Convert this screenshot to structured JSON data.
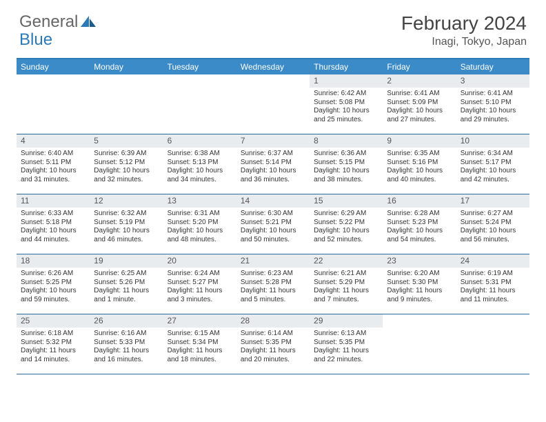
{
  "brand": {
    "part1": "General",
    "part2": "Blue"
  },
  "title": "February 2024",
  "location": "Inagi, Tokyo, Japan",
  "colors": {
    "header_bg": "#3b8bc8",
    "border": "#2a6a9a",
    "daynum_bg": "#e9ecef",
    "text": "#333333",
    "brand_gray": "#666666",
    "brand_blue": "#2a7ab8"
  },
  "weekdays": [
    "Sunday",
    "Monday",
    "Tuesday",
    "Wednesday",
    "Thursday",
    "Friday",
    "Saturday"
  ],
  "first_weekday_index": 4,
  "days": [
    {
      "n": 1,
      "sunrise": "6:42 AM",
      "sunset": "5:08 PM",
      "daylight": "10 hours and 25 minutes."
    },
    {
      "n": 2,
      "sunrise": "6:41 AM",
      "sunset": "5:09 PM",
      "daylight": "10 hours and 27 minutes."
    },
    {
      "n": 3,
      "sunrise": "6:41 AM",
      "sunset": "5:10 PM",
      "daylight": "10 hours and 29 minutes."
    },
    {
      "n": 4,
      "sunrise": "6:40 AM",
      "sunset": "5:11 PM",
      "daylight": "10 hours and 31 minutes."
    },
    {
      "n": 5,
      "sunrise": "6:39 AM",
      "sunset": "5:12 PM",
      "daylight": "10 hours and 32 minutes."
    },
    {
      "n": 6,
      "sunrise": "6:38 AM",
      "sunset": "5:13 PM",
      "daylight": "10 hours and 34 minutes."
    },
    {
      "n": 7,
      "sunrise": "6:37 AM",
      "sunset": "5:14 PM",
      "daylight": "10 hours and 36 minutes."
    },
    {
      "n": 8,
      "sunrise": "6:36 AM",
      "sunset": "5:15 PM",
      "daylight": "10 hours and 38 minutes."
    },
    {
      "n": 9,
      "sunrise": "6:35 AM",
      "sunset": "5:16 PM",
      "daylight": "10 hours and 40 minutes."
    },
    {
      "n": 10,
      "sunrise": "6:34 AM",
      "sunset": "5:17 PM",
      "daylight": "10 hours and 42 minutes."
    },
    {
      "n": 11,
      "sunrise": "6:33 AM",
      "sunset": "5:18 PM",
      "daylight": "10 hours and 44 minutes."
    },
    {
      "n": 12,
      "sunrise": "6:32 AM",
      "sunset": "5:19 PM",
      "daylight": "10 hours and 46 minutes."
    },
    {
      "n": 13,
      "sunrise": "6:31 AM",
      "sunset": "5:20 PM",
      "daylight": "10 hours and 48 minutes."
    },
    {
      "n": 14,
      "sunrise": "6:30 AM",
      "sunset": "5:21 PM",
      "daylight": "10 hours and 50 minutes."
    },
    {
      "n": 15,
      "sunrise": "6:29 AM",
      "sunset": "5:22 PM",
      "daylight": "10 hours and 52 minutes."
    },
    {
      "n": 16,
      "sunrise": "6:28 AM",
      "sunset": "5:23 PM",
      "daylight": "10 hours and 54 minutes."
    },
    {
      "n": 17,
      "sunrise": "6:27 AM",
      "sunset": "5:24 PM",
      "daylight": "10 hours and 56 minutes."
    },
    {
      "n": 18,
      "sunrise": "6:26 AM",
      "sunset": "5:25 PM",
      "daylight": "10 hours and 59 minutes."
    },
    {
      "n": 19,
      "sunrise": "6:25 AM",
      "sunset": "5:26 PM",
      "daylight": "11 hours and 1 minute."
    },
    {
      "n": 20,
      "sunrise": "6:24 AM",
      "sunset": "5:27 PM",
      "daylight": "11 hours and 3 minutes."
    },
    {
      "n": 21,
      "sunrise": "6:23 AM",
      "sunset": "5:28 PM",
      "daylight": "11 hours and 5 minutes."
    },
    {
      "n": 22,
      "sunrise": "6:21 AM",
      "sunset": "5:29 PM",
      "daylight": "11 hours and 7 minutes."
    },
    {
      "n": 23,
      "sunrise": "6:20 AM",
      "sunset": "5:30 PM",
      "daylight": "11 hours and 9 minutes."
    },
    {
      "n": 24,
      "sunrise": "6:19 AM",
      "sunset": "5:31 PM",
      "daylight": "11 hours and 11 minutes."
    },
    {
      "n": 25,
      "sunrise": "6:18 AM",
      "sunset": "5:32 PM",
      "daylight": "11 hours and 14 minutes."
    },
    {
      "n": 26,
      "sunrise": "6:16 AM",
      "sunset": "5:33 PM",
      "daylight": "11 hours and 16 minutes."
    },
    {
      "n": 27,
      "sunrise": "6:15 AM",
      "sunset": "5:34 PM",
      "daylight": "11 hours and 18 minutes."
    },
    {
      "n": 28,
      "sunrise": "6:14 AM",
      "sunset": "5:35 PM",
      "daylight": "11 hours and 20 minutes."
    },
    {
      "n": 29,
      "sunrise": "6:13 AM",
      "sunset": "5:35 PM",
      "daylight": "11 hours and 22 minutes."
    }
  ],
  "labels": {
    "sunrise": "Sunrise: ",
    "sunset": "Sunset: ",
    "daylight": "Daylight: "
  }
}
